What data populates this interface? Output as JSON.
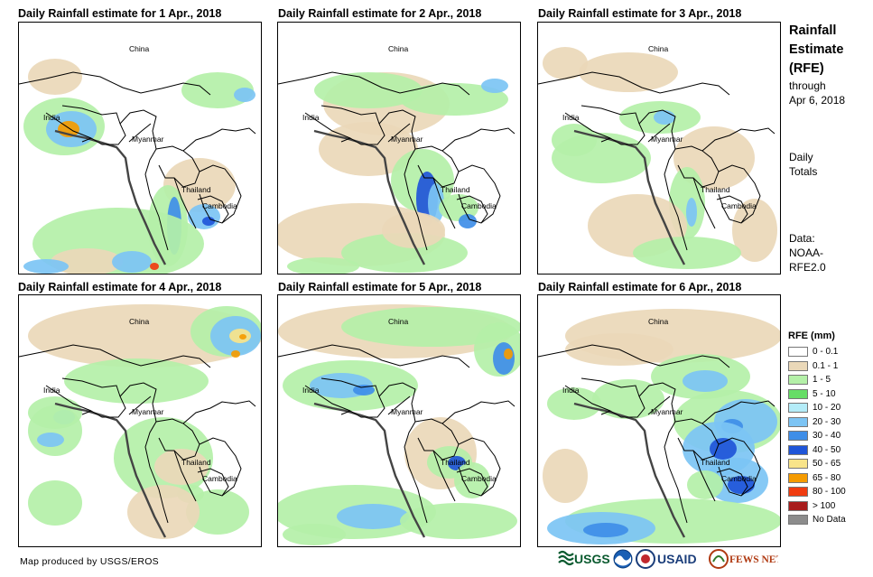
{
  "panels": [
    {
      "title": "Daily Rainfall estimate for 1 Apr., 2018"
    },
    {
      "title": "Daily Rainfall estimate for 2 Apr., 2018"
    },
    {
      "title": "Daily Rainfall estimate for 3 Apr., 2018"
    },
    {
      "title": "Daily Rainfall estimate for 4 Apr., 2018"
    },
    {
      "title": "Daily Rainfall estimate for 5 Apr., 2018"
    },
    {
      "title": "Daily Rainfall estimate for 6 Apr., 2018"
    }
  ],
  "map_labels": {
    "china": "China",
    "india": "India",
    "myanmar": "Myanmar",
    "thailand": "Thailand",
    "cambodia": "Cambodia"
  },
  "sidebar": {
    "title_line1": "Rainfall",
    "title_line2": "Estimate",
    "title_line3": "(RFE)",
    "through": "through",
    "through_date": "Apr 6, 2018",
    "daily_line1": "Daily",
    "daily_line2": "Totals",
    "data_line1": "Data:",
    "data_line2": "NOAA-",
    "data_line3": "RFE2.0"
  },
  "legend": {
    "title": "RFE (mm)",
    "items": [
      {
        "label": "0 - 0.1",
        "color": "#ffffff"
      },
      {
        "label": "0.1 - 1",
        "color": "#ead8b8"
      },
      {
        "label": "1 - 5",
        "color": "#b4f0a8"
      },
      {
        "label": "5 - 10",
        "color": "#66dd66"
      },
      {
        "label": "10 - 20",
        "color": "#b4ecf8"
      },
      {
        "label": "20 - 30",
        "color": "#7cc4f4"
      },
      {
        "label": "30 - 40",
        "color": "#3f8ee8"
      },
      {
        "label": "40 - 50",
        "color": "#1f55d8"
      },
      {
        "label": "50 - 65",
        "color": "#f8e48a"
      },
      {
        "label": "65 - 80",
        "color": "#f59b00"
      },
      {
        "label": "80 - 100",
        "color": "#f03c10"
      },
      {
        "label": "> 100",
        "color": "#a81c1c"
      },
      {
        "label": "No Data",
        "color": "#8c8c8c"
      }
    ]
  },
  "footer": {
    "credit": "Map produced by USGS/EROS",
    "logo_usgs": "USGS",
    "logo_usaid": "USAID",
    "logo_fews": "FEWS NET"
  }
}
